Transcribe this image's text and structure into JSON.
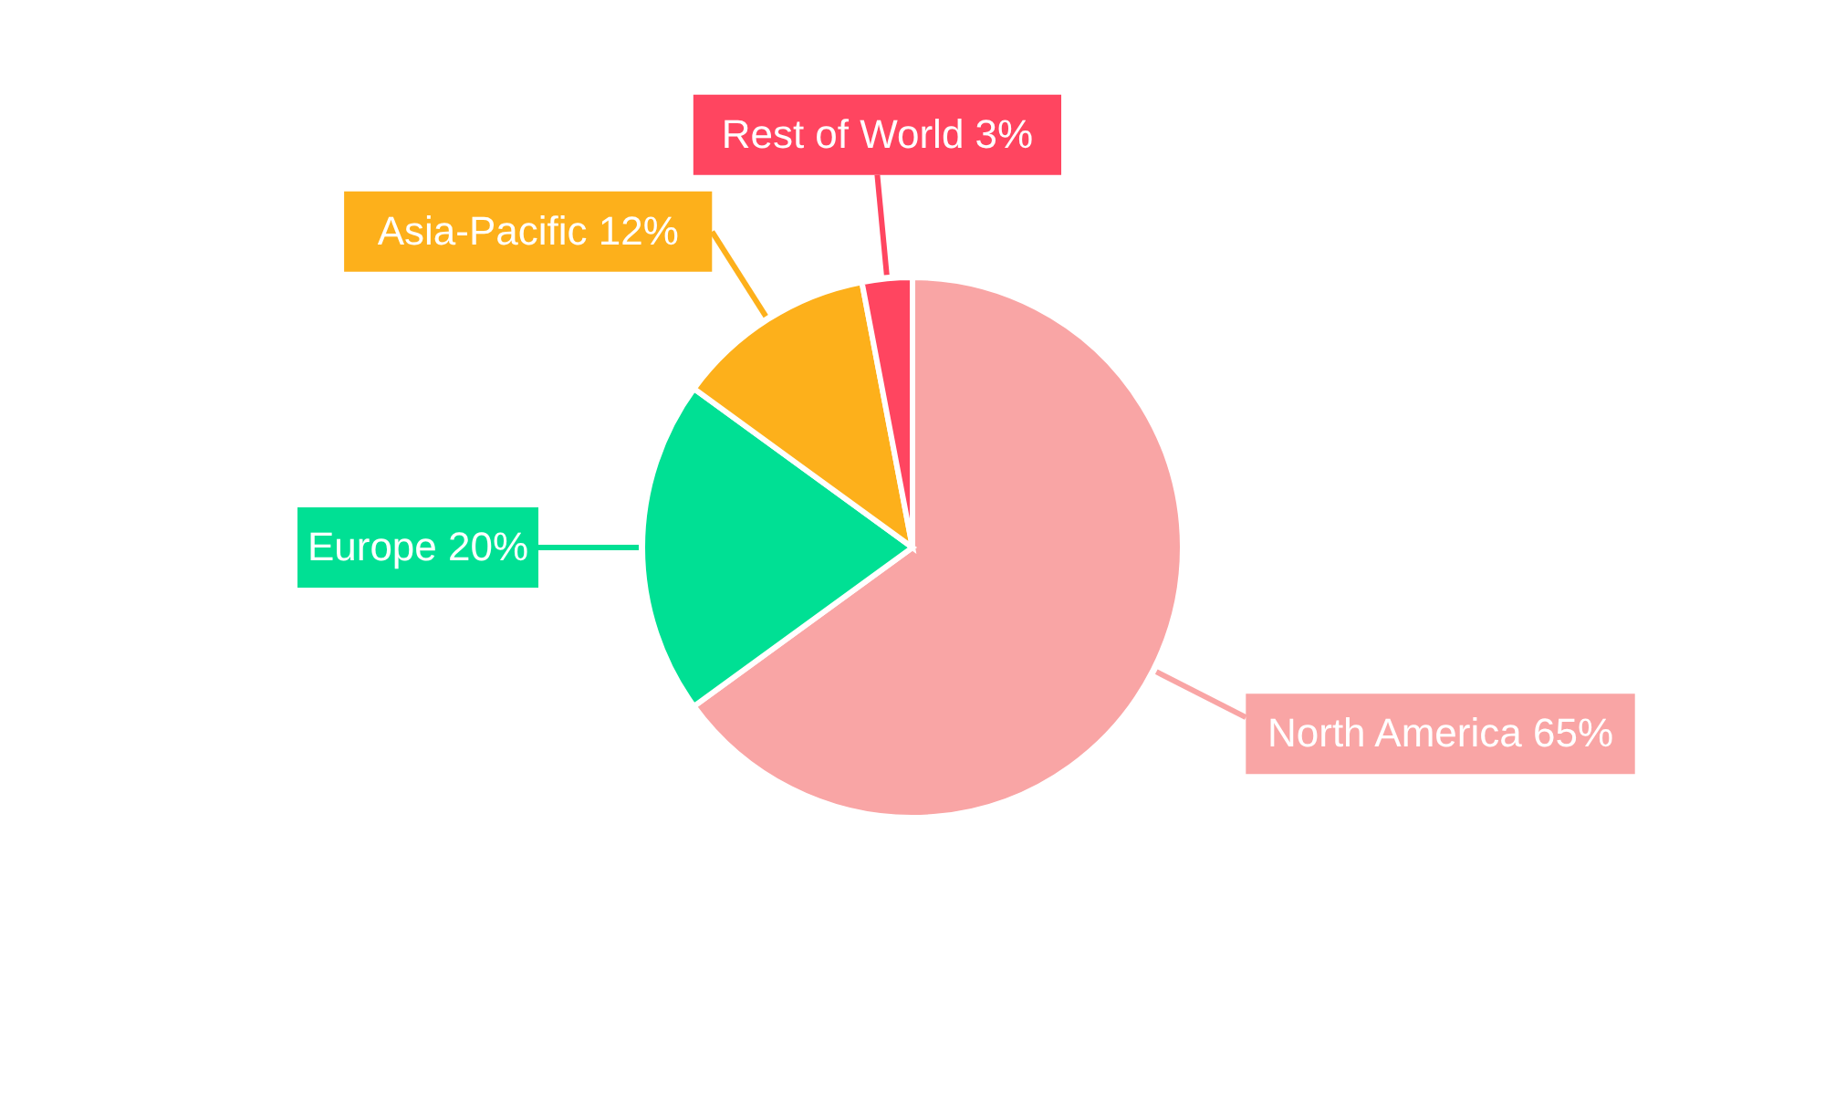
{
  "chart_data": {
    "type": "pie",
    "categories": [
      "North America",
      "Europe",
      "Asia-Pacific",
      "Rest of World"
    ],
    "values": [
      65,
      20,
      12,
      3
    ],
    "value_labels": [
      "65%",
      "20%",
      "12%",
      "3%"
    ],
    "colors": [
      "#f9a5a5",
      "#00e094",
      "#fdb01b",
      "#ff4560"
    ]
  }
}
